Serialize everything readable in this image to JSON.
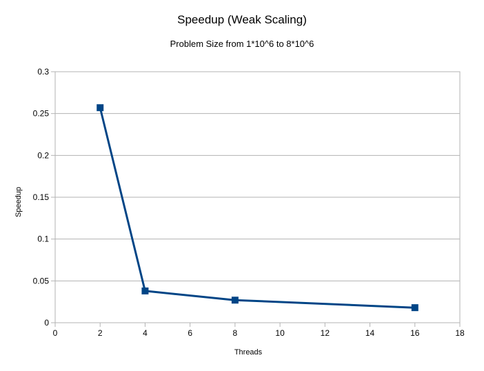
{
  "chart_data": {
    "type": "line",
    "title": "Speedup (Weak Scaling)",
    "subtitle": "Problem Size from 1*10^6 to 8*10^6",
    "xlabel": "Threads",
    "ylabel": "Speedup",
    "xlim": [
      0,
      18
    ],
    "ylim": [
      0,
      0.3
    ],
    "x_ticks": [
      "0",
      "2",
      "4",
      "6",
      "8",
      "10",
      "12",
      "14",
      "16",
      "18"
    ],
    "y_ticks": [
      "0",
      "0.05",
      "0.1",
      "0.15",
      "0.2",
      "0.25",
      "0.3"
    ],
    "grid": "horizontal",
    "legend": "none",
    "series": [
      {
        "x": [
          2,
          4,
          8,
          16
        ],
        "y": [
          0.257,
          0.038,
          0.027,
          0.018
        ],
        "color": "#004586",
        "marker": "square"
      }
    ]
  }
}
